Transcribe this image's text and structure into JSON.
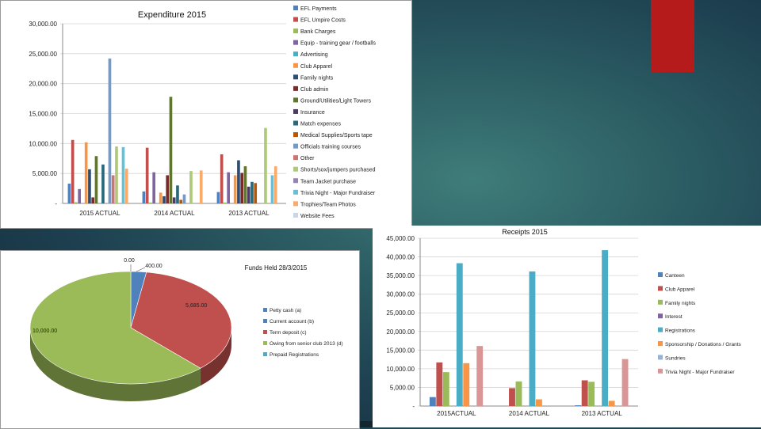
{
  "theme": {
    "accent_block": "#b51b1b",
    "series_colors": [
      "#4f81bd",
      "#c0504d",
      "#9bbb59",
      "#8064a2",
      "#4bacc6",
      "#f79646",
      "#2c4d75",
      "#772c2a",
      "#5f7530",
      "#4d3b62",
      "#276a7c",
      "#b65708",
      "#729aca",
      "#cd7371",
      "#afc97a",
      "#9983b5",
      "#6fbdd1",
      "#f9ab6b",
      "#c9d5e8",
      "#e8c9c9"
    ]
  },
  "chart_data": [
    {
      "id": "expenditure",
      "type": "bar",
      "title": "Expenditure 2015",
      "categories": [
        "2015 ACTUAL",
        "2014 ACTUAL",
        "2013 ACTUAL"
      ],
      "y_ticks": [
        "30,000.00",
        "25,000.00",
        "20,000.00",
        "15,000.00",
        "10,000.00",
        "5,000.00",
        "-"
      ],
      "ylim": [
        0,
        30000
      ],
      "legend_position": "right",
      "series": [
        {
          "name": "EFL Payments",
          "values": [
            3300,
            2000,
            1900
          ]
        },
        {
          "name": "EFL Umpire Costs",
          "values": [
            10600,
            9300,
            8200
          ]
        },
        {
          "name": "Bank Charges",
          "values": [
            200,
            150,
            150
          ]
        },
        {
          "name": "Equip - training gear / footballs",
          "values": [
            2400,
            5200,
            5200
          ]
        },
        {
          "name": "Advertising",
          "values": [
            0,
            0,
            0
          ]
        },
        {
          "name": "Club Apparel",
          "values": [
            10200,
            1800,
            4700
          ]
        },
        {
          "name": "Family nights",
          "values": [
            5700,
            1200,
            7200
          ]
        },
        {
          "name": "Club admin",
          "values": [
            1000,
            4700,
            5100
          ]
        },
        {
          "name": "Ground/Utilities/Light Towers",
          "values": [
            7900,
            17800,
            6200
          ]
        },
        {
          "name": "Insurance",
          "values": [
            0,
            1000,
            2800
          ]
        },
        {
          "name": "Match expenses",
          "values": [
            6500,
            3000,
            3600
          ]
        },
        {
          "name": "Medical Supplies/Sports tape",
          "values": [
            0,
            600,
            3400
          ]
        },
        {
          "name": "Officials training courses",
          "values": [
            24200,
            1500,
            0
          ]
        },
        {
          "name": "Other",
          "values": [
            4700,
            0,
            0
          ]
        },
        {
          "name": "Shorts/sox/jumpers purchased",
          "values": [
            9500,
            5400,
            12600
          ]
        },
        {
          "name": "Team Jacket purchase",
          "values": [
            0,
            0,
            0
          ]
        },
        {
          "name": "Trivia Night - Major Fundraiser",
          "values": [
            9400,
            0,
            4700
          ]
        },
        {
          "name": "Trophies/Team Photos",
          "values": [
            5800,
            5500,
            6200
          ]
        },
        {
          "name": "Website Fees",
          "values": [
            0,
            0,
            0
          ]
        }
      ]
    },
    {
      "id": "funds",
      "type": "pie",
      "title": "Funds Held 28/3/2015",
      "slices": [
        {
          "name": "Petty cash (a)",
          "value": 0,
          "label": "0.00"
        },
        {
          "name": "Current account (b)",
          "value": 400,
          "label": "400.00"
        },
        {
          "name": "Term deposit (c)",
          "value": 5685,
          "label": "5,685.00"
        },
        {
          "name": "Owing from senior club 2013 (d)",
          "value": 10000,
          "label": "10,000.00"
        },
        {
          "name": "Prepaid Registrations",
          "value": 0,
          "label": ""
        }
      ],
      "slice_colors": [
        "#4f81bd",
        "#4f81bd",
        "#c0504d",
        "#9bbb59",
        "#4bacc6"
      ],
      "legend_position": "right"
    },
    {
      "id": "receipts",
      "type": "bar",
      "title": "Receipts 2015",
      "categories": [
        "2015ACTUAL",
        "2014 ACTUAL",
        "2013 ACTUAL"
      ],
      "y_ticks": [
        "45,000.00",
        "40,000.00",
        "35,000.00",
        "30,000.00",
        "25,000.00",
        "20,000.00",
        "15,000.00",
        "10,000.00",
        "5,000.00",
        "-"
      ],
      "ylim": [
        0,
        45000
      ],
      "legend_position": "right",
      "series": [
        {
          "name": "Canteen",
          "values": [
            2400,
            0,
            200
          ]
        },
        {
          "name": "Club Apparel",
          "values": [
            11700,
            4800,
            6900
          ]
        },
        {
          "name": "Family nights",
          "values": [
            9100,
            6600,
            6500
          ]
        },
        {
          "name": "Interest",
          "values": [
            0,
            0,
            0
          ]
        },
        {
          "name": "Registrations",
          "values": [
            38300,
            36100,
            41800
          ]
        },
        {
          "name": "Sponsorship / Donations / Grants",
          "values": [
            11500,
            1800,
            1400
          ]
        },
        {
          "name": "Sundries",
          "values": [
            0,
            0,
            0
          ]
        },
        {
          "name": "Trivia Night - Major Fundraiser",
          "values": [
            16100,
            0,
            12600
          ]
        }
      ],
      "series_colors": [
        "#4f81bd",
        "#c0504d",
        "#9bbb59",
        "#8064a2",
        "#4bacc6",
        "#f79646",
        "#95b3d7",
        "#d99694"
      ]
    }
  ]
}
